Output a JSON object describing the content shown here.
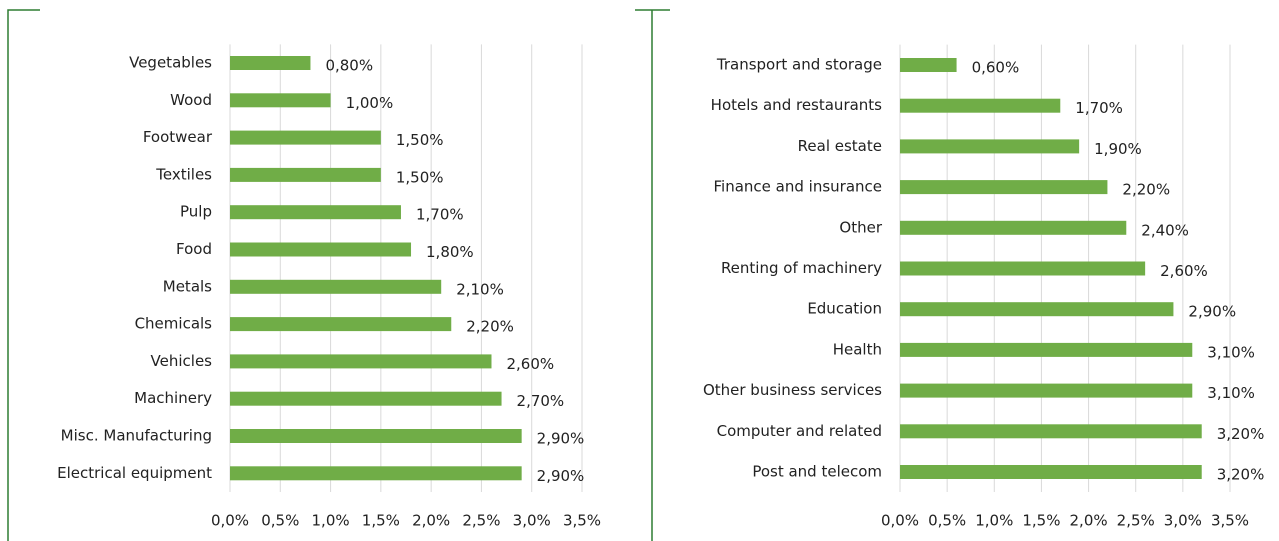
{
  "chart_data": [
    {
      "type": "bar",
      "orientation": "horizontal",
      "color": "#70ad47",
      "grid": true,
      "categories": [
        "Vegetables",
        "Wood",
        "Footwear",
        "Textiles",
        "Pulp",
        "Food",
        "Metals",
        "Chemicals",
        "Vehicles",
        "Machinery",
        "Misc. Manufacturing",
        "Electrical equipment"
      ],
      "values": [
        0.8,
        1.0,
        1.5,
        1.5,
        1.7,
        1.8,
        2.1,
        2.2,
        2.6,
        2.7,
        2.9,
        2.9
      ],
      "value_labels": [
        "0,80%",
        "1,00%",
        "1,50%",
        "1,50%",
        "1,70%",
        "1,80%",
        "2,10%",
        "2,20%",
        "2,60%",
        "2,70%",
        "2,90%",
        "2,90%"
      ],
      "xlim": [
        0,
        3.5
      ],
      "xticks": [
        {
          "value": 0,
          "label": "0,0%"
        },
        {
          "value": 0.5,
          "label": "0,5%"
        },
        {
          "value": 1,
          "label": "1,0%"
        },
        {
          "value": 1.5,
          "label": "1,5%"
        },
        {
          "value": 2,
          "label": "2,0%"
        },
        {
          "value": 2.5,
          "label": "2,5%"
        },
        {
          "value": 3,
          "label": "3,0%"
        },
        {
          "value": 3.5,
          "label": "3,5%"
        }
      ]
    },
    {
      "type": "bar",
      "orientation": "horizontal",
      "color": "#70ad47",
      "grid": true,
      "categories": [
        "Transport and storage",
        "Hotels and restaurants",
        "Real estate",
        "Finance and insurance",
        "Other",
        "Renting of machinery",
        "Education",
        "Health",
        "Other business services",
        "Computer and related",
        "Post and telecom"
      ],
      "values": [
        0.6,
        1.7,
        1.9,
        2.2,
        2.4,
        2.6,
        2.9,
        3.1,
        3.1,
        3.2,
        3.2
      ],
      "value_labels": [
        "0,60%",
        "1,70%",
        "1,90%",
        "2,20%",
        "2,40%",
        "2,60%",
        "2,90%",
        "3,10%",
        "3,10%",
        "3,20%",
        "3,20%"
      ],
      "xlim": [
        0,
        3.5
      ],
      "xticks": [
        {
          "value": 0,
          "label": "0,0%"
        },
        {
          "value": 0.5,
          "label": "0,5%"
        },
        {
          "value": 1,
          "label": "1,0%"
        },
        {
          "value": 1.5,
          "label": "1,5%"
        },
        {
          "value": 2,
          "label": "2,0%"
        },
        {
          "value": 2.5,
          "label": "2,5%"
        },
        {
          "value": 3,
          "label": "3,0%"
        },
        {
          "value": 3.5,
          "label": "3,5%"
        }
      ]
    }
  ]
}
